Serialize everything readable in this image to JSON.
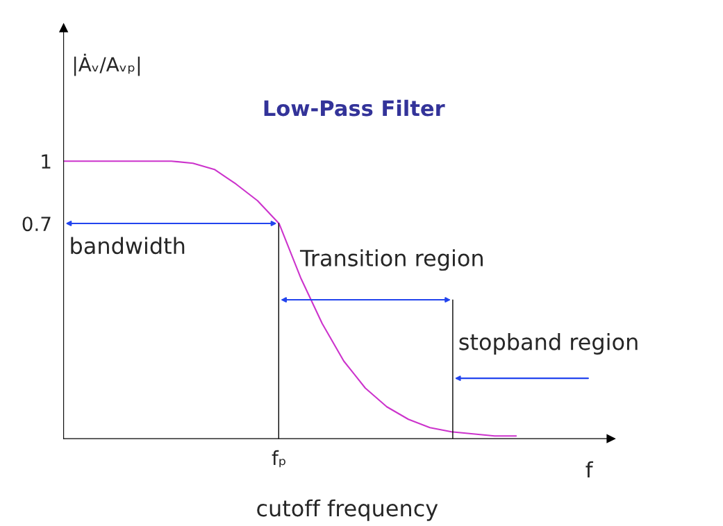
{
  "chart_data": {
    "type": "line",
    "title": "Low-Pass Filter",
    "ylabel": "|Ȧᵥ/Aᵥₚ|",
    "xlabel": "f",
    "categories": [
      null,
      null,
      null,
      null,
      null,
      null,
      null,
      null,
      null,
      null,
      "fₚ",
      null,
      null,
      null,
      null,
      null,
      null,
      null,
      null,
      null,
      null,
      null
    ],
    "series": [
      {
        "color": "#cc33cc",
        "values": [
          1.0,
          1.0,
          1.0,
          1.0,
          1.0,
          1.0,
          0.99,
          0.96,
          0.89,
          0.81,
          0.7,
          0.44,
          0.22,
          0.04,
          -0.09,
          -0.18,
          -0.24,
          -0.28,
          -0.3,
          -0.31,
          -0.32,
          -0.32
        ]
      }
    ],
    "ylim": [
      -0.333,
      1.64
    ],
    "yticks": [
      0.7,
      1
    ],
    "grid": false,
    "legend": false,
    "marker": "none",
    "line_style": "solid",
    "annotations": [
      "bandwidth",
      "Transition region",
      "stopband region",
      "cutoff frequency"
    ]
  }
}
